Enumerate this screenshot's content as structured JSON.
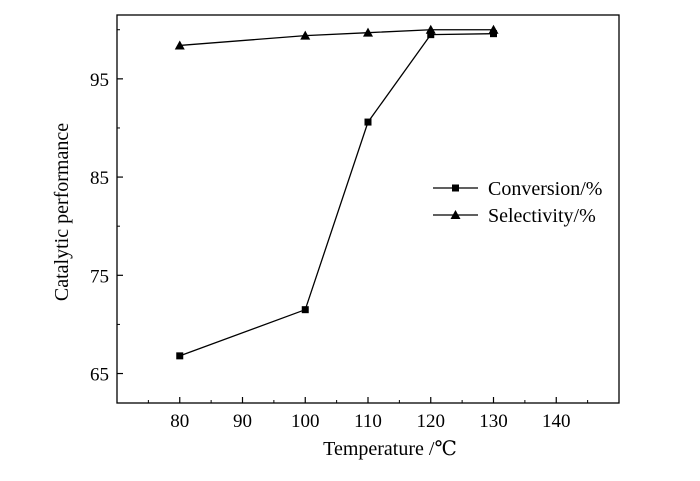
{
  "chart_data": {
    "type": "line",
    "xlabel": "Temperature /℃",
    "ylabel": "Catalytic performance",
    "xlim": [
      70,
      150
    ],
    "ylim": [
      62,
      101.5
    ],
    "x_ticks": [
      80,
      90,
      100,
      110,
      120,
      130,
      140
    ],
    "y_ticks": [
      65,
      75,
      85,
      95
    ],
    "grid": false,
    "legend_position": "center-right",
    "series": [
      {
        "name": "Conversion/%",
        "marker": "square",
        "x": [
          80,
          100,
          110,
          120,
          130
        ],
        "y": [
          66.8,
          71.5,
          90.6,
          99.5,
          99.6
        ]
      },
      {
        "name": "Selectivity/%",
        "marker": "triangle",
        "x": [
          80,
          100,
          110,
          120,
          130
        ],
        "y": [
          98.4,
          99.4,
          99.7,
          100.0,
          100.0
        ]
      }
    ]
  }
}
